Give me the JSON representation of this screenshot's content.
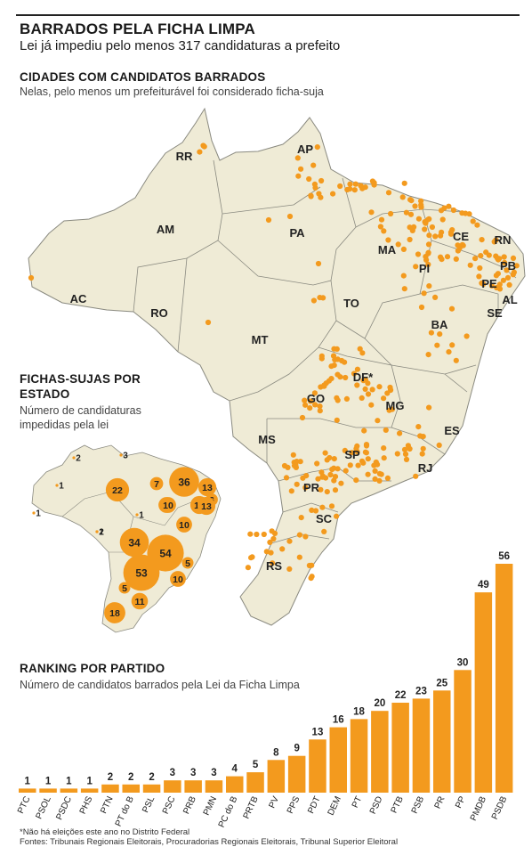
{
  "header": {
    "title": "BARRADOS PELA FICHA LIMPA",
    "subtitle": "Lei já impediu pelo menos 317 candidaturas a prefeito"
  },
  "map_section": {
    "title": "CIDADES COM CANDIDATOS BARRADOS",
    "subtitle": "Nelas, pelo menos um prefeiturável foi considerado ficha-suja",
    "state_labels": [
      "RR",
      "AP",
      "AM",
      "PA",
      "MA",
      "CE",
      "RN",
      "PB",
      "PI",
      "PE",
      "AL",
      "AC",
      "RO",
      "TO",
      "SE",
      "BA",
      "MT",
      "DF*",
      "GO",
      "MG",
      "ES",
      "MS",
      "SP",
      "RJ",
      "PR",
      "SC",
      "RS"
    ]
  },
  "state_section": {
    "title": "FICHAS-SUJAS POR ESTADO",
    "subtitle": "Número de candidaturas impedidas pela lei"
  },
  "ranking_section": {
    "title": "RANKING POR PARTIDO",
    "subtitle": "Número de candidatos barrados pela Lei da Ficha Limpa"
  },
  "chart_data": [
    {
      "type": "bar",
      "title": "RANKING POR PARTIDO",
      "subtitle": "Número de candidatos barrados pela Lei da Ficha Limpa",
      "categories": [
        "PTC",
        "PSOL",
        "PSDC",
        "PHS",
        "PTN",
        "PT do B",
        "PSL",
        "PSC",
        "PRB",
        "PMN",
        "PC do B",
        "PRTB",
        "PV",
        "PPS",
        "PDT",
        "DEM",
        "PT",
        "PSD",
        "PTB",
        "PSB",
        "PR",
        "PP",
        "PMDB",
        "PSDB"
      ],
      "values": [
        1,
        1,
        1,
        1,
        2,
        2,
        2,
        3,
        3,
        3,
        4,
        5,
        8,
        9,
        13,
        16,
        18,
        20,
        22,
        23,
        25,
        30,
        49,
        56
      ],
      "color": "#f39a1e",
      "ylim": [
        0,
        56
      ]
    },
    {
      "type": "bubble",
      "title": "FICHAS-SUJAS POR ESTADO",
      "subtitle": "Número de candidaturas impedidas pela lei",
      "states": [
        "RR",
        "AP",
        "AM",
        "AC",
        "PA",
        "RO",
        "MA",
        "PI",
        "CE",
        "RN",
        "PB",
        "PE",
        "AL",
        "SE",
        "BA",
        "MT",
        "GO",
        "DF",
        "MG",
        "MS",
        "SP",
        "RJ",
        "ES",
        "PR",
        "SC",
        "RS"
      ],
      "values": [
        2,
        3,
        1,
        1,
        22,
        1,
        7,
        10,
        36,
        13,
        13,
        6,
        13,
        10,
        10,
        2,
        34,
        null,
        54,
        1,
        53,
        10,
        5,
        5,
        11,
        18
      ],
      "color": "#f39a1e"
    }
  ],
  "footer": {
    "note": "*Não há eleições este ano no Distrito Federal",
    "sources": "Fontes: Tribunais Regionais Eleitorais, Procuradorias Regionais Eleitorais, Tribunal Superior Eleitoral"
  }
}
